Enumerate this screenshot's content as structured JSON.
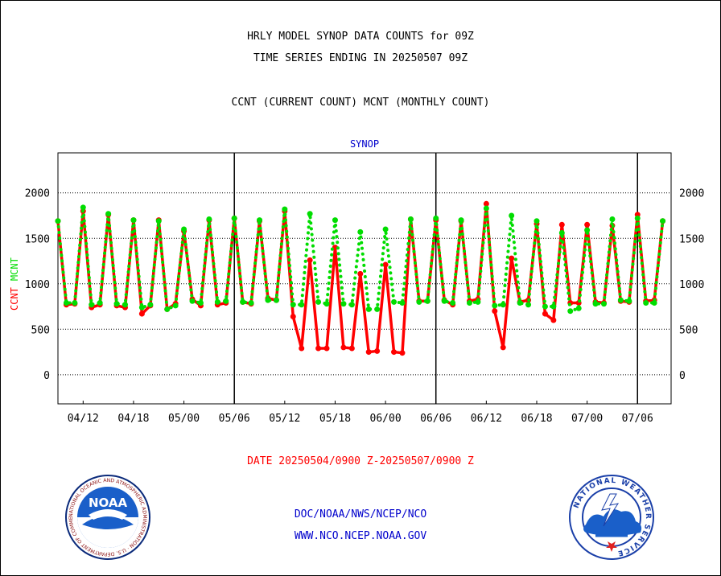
{
  "header": {
    "title_line1": "HRLY MODEL SYNOP DATA COUNTS for 09Z",
    "title_line2": "TIME SERIES ENDING IN 20250507 09Z",
    "subtitle": "CCNT (CURRENT COUNT) MCNT (MONTHLY COUNT)"
  },
  "footer": {
    "date_range": "DATE 20250504/0900 Z-20250507/0900 Z",
    "org_line1": "DOC/NOAA/NWS/NCEP/NCO",
    "org_line2": "WWW.NCO.NCEP.NOAA.GOV"
  },
  "logos": {
    "noaa": "NOAA",
    "noaa_ring": "NATIONAL OCEANIC AND ATMOSPHERIC ADMINISTRATION · U.S. DEPARTMENT OF COMMERCE",
    "nws_ring": "NATIONAL WEATHER SERVICE"
  },
  "colors": {
    "ccnt": "#ff0000",
    "mcnt": "#00dd00",
    "panel_label": "#0000cc",
    "grid": "#000000"
  },
  "chart_data": {
    "type": "line",
    "title": "SYNOP",
    "ylabel_left": [
      "CCNT",
      "MCNT"
    ],
    "ylim": [
      -320,
      2440
    ],
    "yticks": [
      0,
      500,
      1000,
      1500,
      2000
    ],
    "xlim": [
      0,
      73
    ],
    "x_ticks": [
      {
        "x": 3,
        "label": "04/12"
      },
      {
        "x": 9,
        "label": "04/18"
      },
      {
        "x": 15,
        "label": "05/00"
      },
      {
        "x": 21,
        "label": "05/06"
      },
      {
        "x": 27,
        "label": "05/12"
      },
      {
        "x": 33,
        "label": "05/18"
      },
      {
        "x": 39,
        "label": "06/00"
      },
      {
        "x": 45,
        "label": "06/06"
      },
      {
        "x": 51,
        "label": "06/12"
      },
      {
        "x": 57,
        "label": "06/18"
      },
      {
        "x": 63,
        "label": "07/00"
      },
      {
        "x": 69,
        "label": "07/06"
      }
    ],
    "day_dividers": [
      21,
      45,
      69
    ],
    "grid": "horizontal dotted",
    "legend": "left axis label",
    "series": [
      {
        "name": "CCNT",
        "color": "#ff0000",
        "style": "solid",
        "values": [
          1690,
          770,
          780,
          1800,
          740,
          770,
          1760,
          760,
          740,
          1700,
          670,
          760,
          1700,
          720,
          780,
          1580,
          830,
          760,
          1700,
          770,
          790,
          1720,
          800,
          780,
          1690,
          840,
          820,
          1800,
          640,
          290,
          1260,
          290,
          290,
          1400,
          300,
          290,
          1110,
          250,
          260,
          1210,
          250,
          240,
          1710,
          810,
          810,
          1700,
          820,
          770,
          1690,
          810,
          830,
          1880,
          700,
          300,
          1280,
          800,
          820,
          1660,
          670,
          600,
          1650,
          790,
          790,
          1650,
          800,
          790,
          1640,
          810,
          800,
          1760,
          810,
          820,
          1690
        ]
      },
      {
        "name": "MCNT",
        "color": "#00dd00",
        "style": "dotted",
        "values": [
          1690,
          790,
          790,
          1840,
          770,
          790,
          1770,
          780,
          770,
          1700,
          740,
          770,
          1690,
          720,
          760,
          1600,
          810,
          790,
          1710,
          800,
          810,
          1720,
          800,
          790,
          1700,
          820,
          820,
          1820,
          770,
          770,
          1770,
          800,
          780,
          1700,
          780,
          770,
          1570,
          720,
          720,
          1600,
          800,
          790,
          1710,
          800,
          810,
          1720,
          810,
          790,
          1700,
          790,
          800,
          1830,
          760,
          770,
          1750,
          790,
          770,
          1690,
          750,
          750,
          1560,
          700,
          730,
          1590,
          780,
          780,
          1710,
          820,
          810,
          1720,
          790,
          790,
          1690
        ]
      }
    ]
  }
}
